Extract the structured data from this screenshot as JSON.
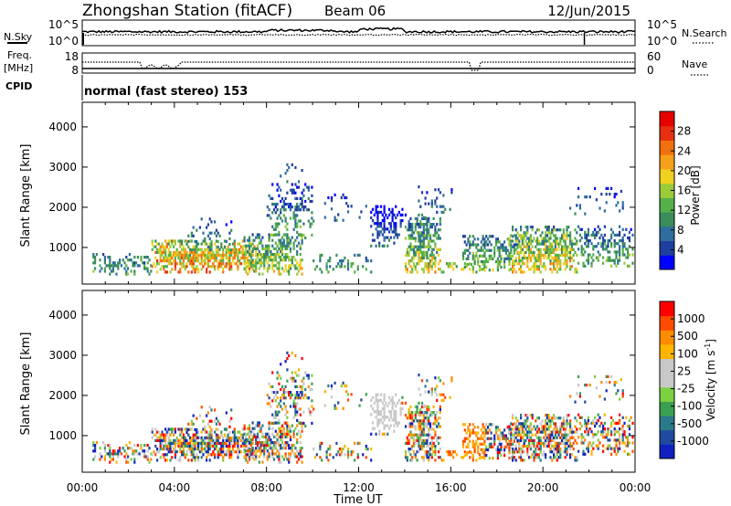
{
  "header": {
    "station": "Zhongshan Station (fitACF)",
    "beam": "Beam 06",
    "date": "12/Jun/2015"
  },
  "top_panel": {
    "left_label": "N.Sky",
    "left_ticks": [
      "10^5",
      "10^0"
    ],
    "right_label": "N.Search",
    "right_ticks": [
      "10^5",
      "10^0"
    ]
  },
  "freq_panel": {
    "left_label_1": "Freq.",
    "left_label_2": "[MHz]",
    "left_ticks": [
      "18",
      "8"
    ],
    "right_label": "Nave",
    "right_ticks": [
      "60",
      "0"
    ]
  },
  "cpid": {
    "label": "CPID",
    "text": "normal (fast stereo) 153"
  },
  "x_axis": {
    "ticks": [
      "00:00",
      "04:00",
      "08:00",
      "12:00",
      "16:00",
      "20:00",
      "00:00"
    ],
    "label": "Time UT"
  },
  "colors": {
    "power_scale": [
      "#0000ff",
      "#1f3f9e",
      "#2e6d9e",
      "#3a8c5a",
      "#55b04a",
      "#9ccb3a",
      "#f0d020",
      "#f5a01a",
      "#f07010",
      "#e83010",
      "#e60000"
    ],
    "velocity_scale": [
      "#ff0000",
      "#ff4a00",
      "#ff8c00",
      "#ffb400",
      "#c8c8c8",
      "#c8c8c8",
      "#7dd040",
      "#3aa050",
      "#2a7a8a",
      "#1f4aa0",
      "#1020c0"
    ]
  },
  "chart_data": [
    {
      "type": "line",
      "panel": "sky-search-counts",
      "y_scale": "log",
      "left_label": "N.Sky",
      "right_label": "N.Search",
      "x_range": [
        "00:00",
        "24:00"
      ]
    },
    {
      "type": "line",
      "panel": "frequency-nave",
      "left_label": "Freq. [MHz]",
      "left_ylim": [
        8,
        18
      ],
      "right_label": "Nave",
      "right_ylim": [
        0,
        60
      ],
      "x_range": [
        "00:00",
        "24:00"
      ]
    },
    {
      "type": "heatmap",
      "panel": "power",
      "ylabel": "Slant Range [km]",
      "yticks": [
        1000,
        2000,
        3000,
        4000
      ],
      "colorbar_label": "Power [dB]",
      "colorbar_ticks": [
        4,
        8,
        12,
        16,
        20,
        24,
        28
      ],
      "xlabel": "Time UT",
      "x_range": [
        "00:00",
        "24:00"
      ]
    },
    {
      "type": "heatmap",
      "panel": "velocity",
      "ylabel": "Slant Range [km]",
      "yticks": [
        1000,
        2000,
        3000,
        4000
      ],
      "colorbar_label": "Velocity [m s^-1]",
      "colorbar_ticks": [
        1000,
        500,
        100,
        25,
        -25,
        -100,
        -500,
        -1000
      ],
      "xlabel": "Time UT",
      "x_range": [
        "00:00",
        "24:00"
      ]
    }
  ],
  "power_panel": {
    "ylabel": "Slant Range [km]",
    "yticks": [
      "1000",
      "2000",
      "3000",
      "4000"
    ],
    "cb_title": "Power [dB]",
    "cb_ticks": [
      "4",
      "8",
      "12",
      "16",
      "20",
      "24",
      "28"
    ]
  },
  "velocity_panel": {
    "ylabel": "Slant Range [km]",
    "yticks": [
      "1000",
      "2000",
      "3000",
      "4000"
    ],
    "cb_title_main": "Velocity [m s",
    "cb_title_sup": "-1",
    "cb_title_end": "]",
    "cb_ticks": [
      "1000",
      "500",
      "100",
      "25",
      "-25",
      "-100",
      "-500",
      "-1000"
    ]
  }
}
